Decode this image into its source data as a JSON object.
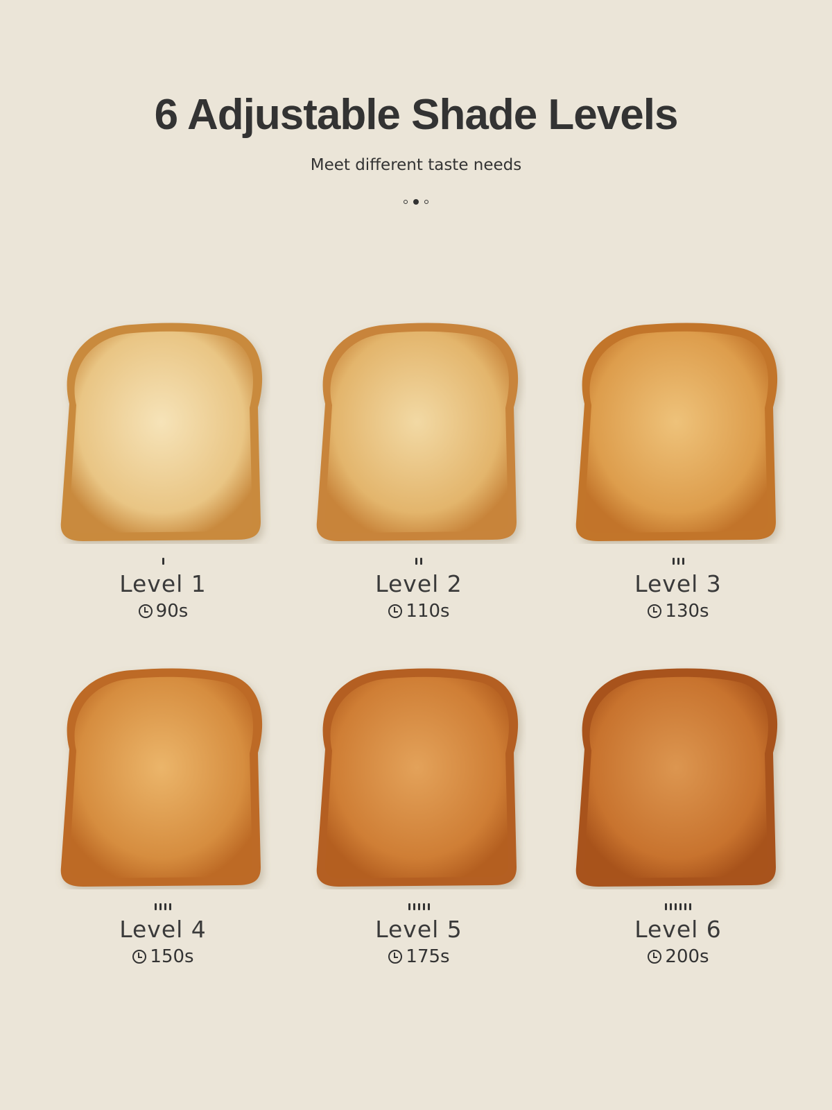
{
  "header": {
    "title": "6 Adjustable Shade Levels",
    "subtitle": "Meet different taste needs",
    "pagination": {
      "count": 3,
      "active_index": 1
    }
  },
  "levels": [
    {
      "label": "Level 1",
      "time": "90s",
      "ticks": 1,
      "crust": "#c98a3e",
      "center": "#f6e3b8",
      "edge": "#e9c584"
    },
    {
      "label": "Level 2",
      "time": "110s",
      "ticks": 2,
      "crust": "#c8843a",
      "center": "#f2d9a4",
      "edge": "#e3b56c"
    },
    {
      "label": "Level 3",
      "time": "130s",
      "ticks": 3,
      "crust": "#c2742a",
      "center": "#eec27a",
      "edge": "#dd9d4c"
    },
    {
      "label": "Level 4",
      "time": "150s",
      "ticks": 4,
      "crust": "#bd6a25",
      "center": "#ebb56a",
      "edge": "#d68d3f"
    },
    {
      "label": "Level 5",
      "time": "175s",
      "ticks": 5,
      "crust": "#b45f20",
      "center": "#e3a25a",
      "edge": "#cf7e35"
    },
    {
      "label": "Level 6",
      "time": "200s",
      "ticks": 6,
      "crust": "#a8531b",
      "center": "#dc9650",
      "edge": "#c8732e"
    }
  ],
  "icons": {
    "time": "clock-icon"
  },
  "colors": {
    "background": "#ebe5d8",
    "text": "#333333"
  }
}
